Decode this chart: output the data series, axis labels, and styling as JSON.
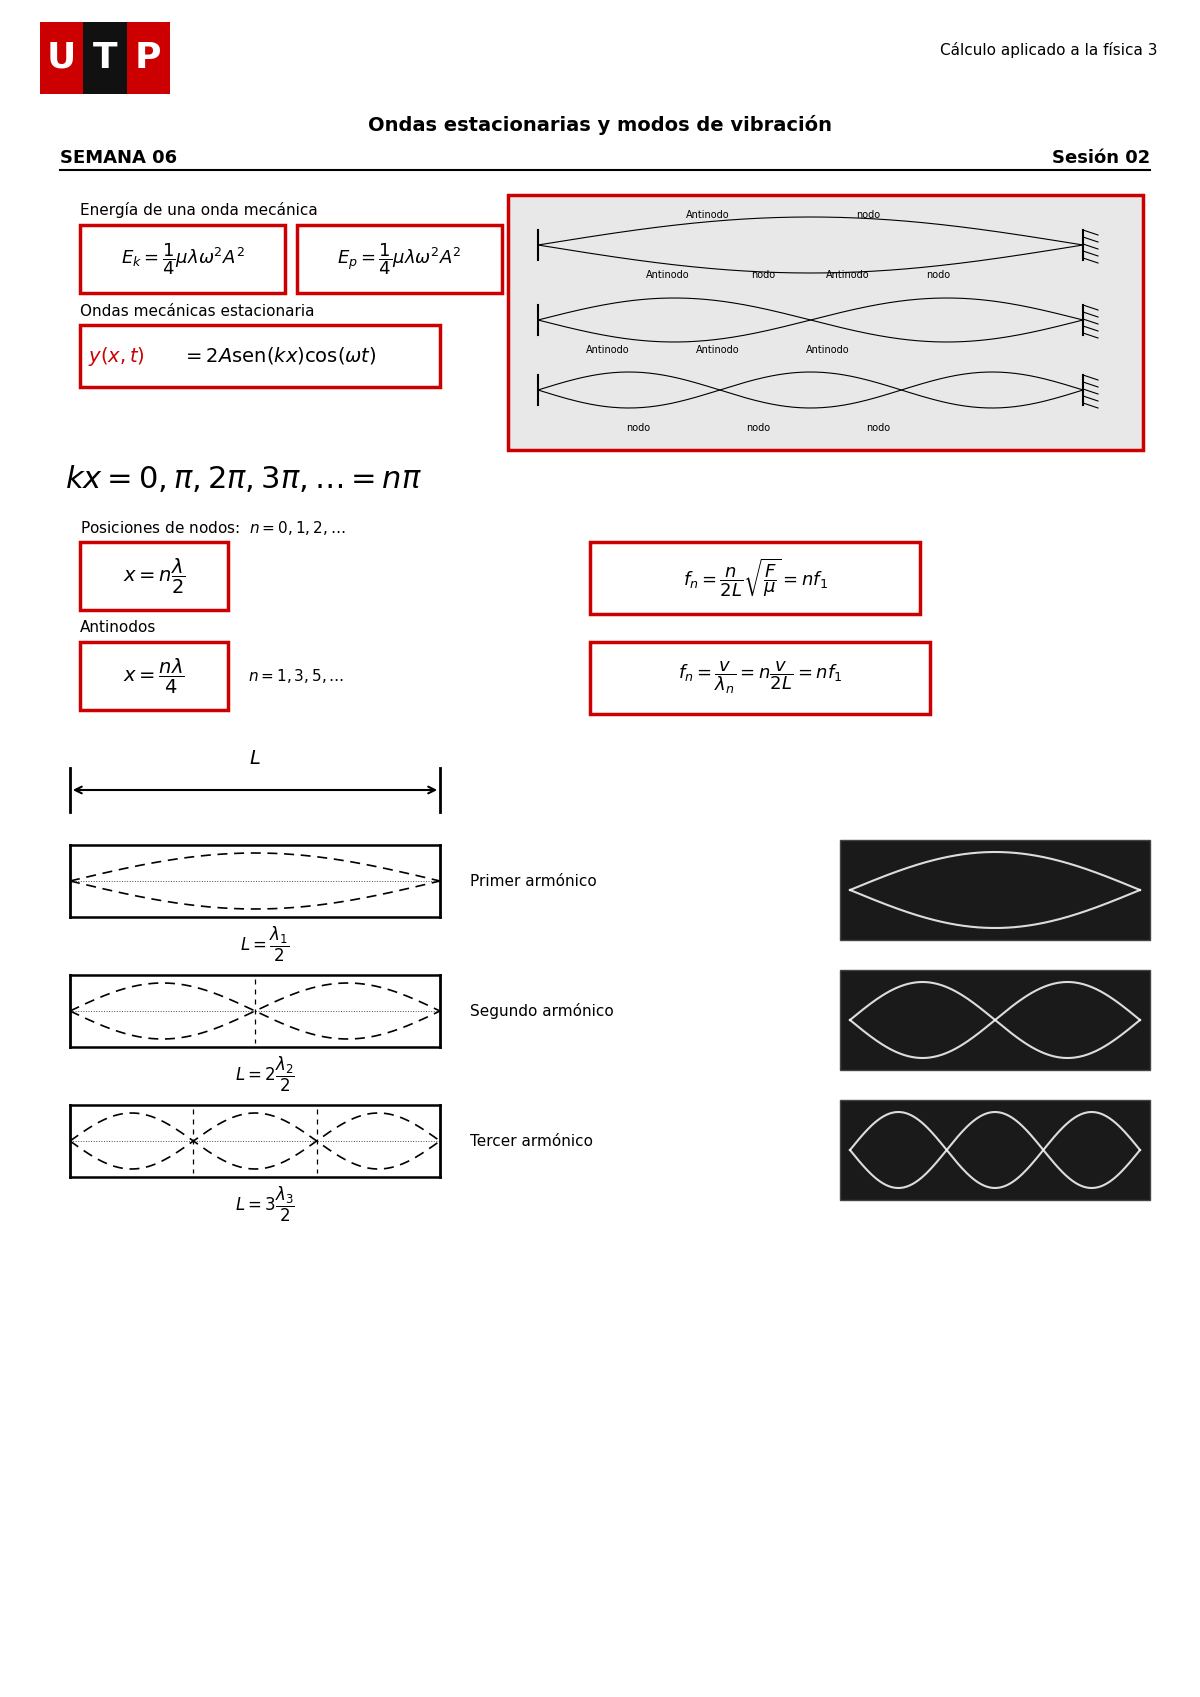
{
  "title": "Ondas estacionarias y modos de vibración",
  "semana": "SEMANA 06",
  "sesion": "Sesión 02",
  "subtitulo_derecha": "Cálculo aplicado a la física 3",
  "background": "#ffffff",
  "text_color": "#000000",
  "red_color": "#cc0000",
  "logo_u_color": "#cc0000",
  "logo_t_color": "#111111",
  "logo_p_color": "#cc0000"
}
